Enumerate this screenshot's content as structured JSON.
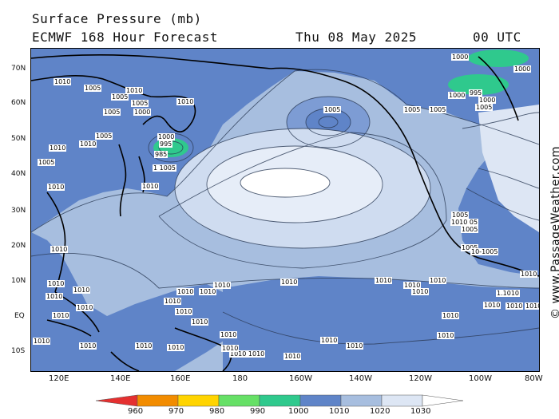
{
  "header": {
    "title": "Surface Pressure (mb)",
    "model": "ECMWF 168 Hour Forecast",
    "date": "Thu 08 May 2025",
    "time": "00 UTC"
  },
  "credit": "© www.PassageWeather.com",
  "axes": {
    "lat_labels": [
      "70N",
      "60N",
      "50N",
      "40N",
      "30N",
      "20N",
      "10N",
      "EQ",
      "10S"
    ],
    "lon_labels": [
      "120E",
      "140E",
      "160E",
      "180",
      "160W",
      "140W",
      "120W",
      "100W",
      "80W"
    ]
  },
  "colors": {
    "ocean_mid": "#a7bedf",
    "deep_low": "#5f84c8",
    "high_pale": "#cfdcf0",
    "high_core": "#ffffff",
    "green_low": "#2fc98d"
  },
  "contour_labels": {
    "text_1000": "1000",
    "text_1005": "1005",
    "text_1010": "1010",
    "text_995": "995",
    "text_985": "985",
    "text_11005": "1 1005",
    "text_1010_05": "1010 05",
    "text_10_1005": "10-1005",
    "text_1_1010": "1.1010",
    "text_1010_1010": "1010 1010"
  },
  "legend": {
    "ticks": [
      "960",
      "970",
      "980",
      "990",
      "1000",
      "1010",
      "1020",
      "1030"
    ],
    "colors": [
      "#e53030",
      "#f28c00",
      "#ffd400",
      "#66e066",
      "#2fc98d",
      "#5f84c8",
      "#a7bedf",
      "#dde6f4"
    ]
  }
}
